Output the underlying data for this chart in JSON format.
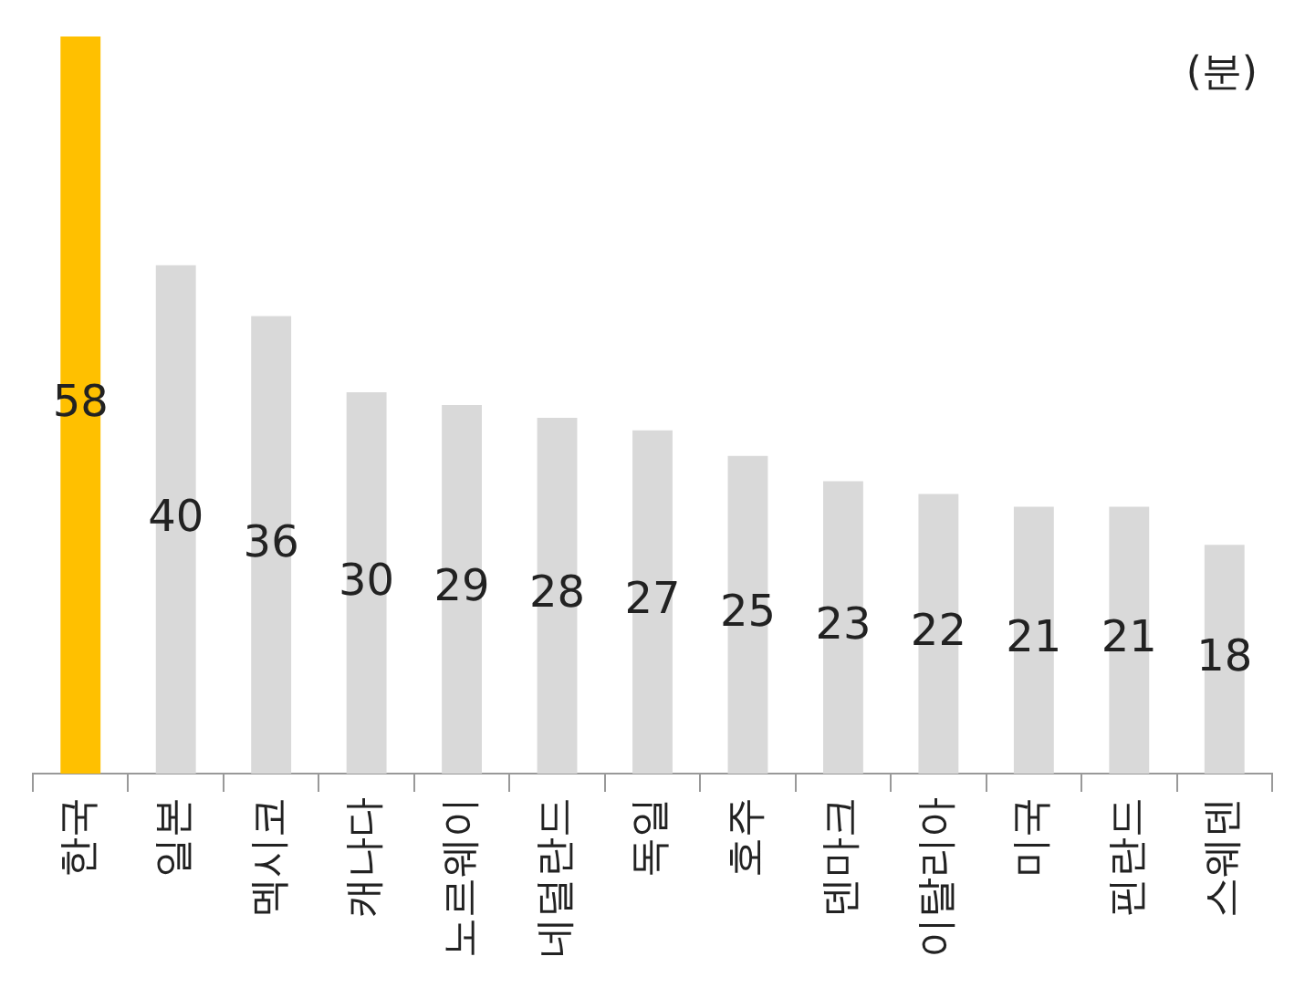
{
  "chart_data": {
    "type": "bar",
    "categories": [
      "한국",
      "일본",
      "멕시코",
      "캐나다",
      "노르웨이",
      "네덜란드",
      "독일",
      "호주",
      "덴마크",
      "이탈리아",
      "미국",
      "핀란드",
      "스웨덴"
    ],
    "values": [
      58,
      40,
      36,
      30,
      29,
      28,
      27,
      25,
      23,
      22,
      21,
      21,
      18
    ],
    "colors": [
      "#ffc000",
      "#d9d9d9",
      "#d9d9d9",
      "#d9d9d9",
      "#d9d9d9",
      "#d9d9d9",
      "#d9d9d9",
      "#d9d9d9",
      "#d9d9d9",
      "#d9d9d9",
      "#d9d9d9",
      "#d9d9d9",
      "#d9d9d9"
    ],
    "ylim": [
      0,
      58
    ],
    "data_labels": true,
    "legend": false,
    "tick_labels": "x",
    "annotations": [
      "(분)"
    ]
  }
}
